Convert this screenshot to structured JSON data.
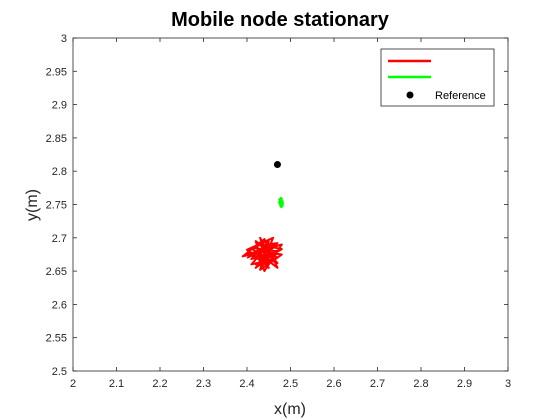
{
  "chart_data": {
    "type": "line",
    "title": "Mobile node stationary",
    "xlabel": "x(m)",
    "ylabel": "y(m)",
    "xlim": [
      2,
      3
    ],
    "ylim": [
      2.5,
      3
    ],
    "x_ticks": [
      "2",
      "2.1",
      "2.2",
      "2.3",
      "2.4",
      "2.5",
      "2.6",
      "2.7",
      "2.8",
      "2.9",
      "3"
    ],
    "y_ticks": [
      "2.5",
      "2.55",
      "2.6",
      "2.65",
      "2.7",
      "2.75",
      "2.8",
      "2.85",
      "2.9",
      "2.95",
      "3"
    ],
    "grid": false,
    "legend_position": "top-right",
    "series": [
      {
        "label": "",
        "color": "#ff0000",
        "style": "line",
        "center": [
          2.44,
          2.675
        ],
        "spread": [
          0.035,
          0.018
        ],
        "points": [
          [
            2.4,
            2.67
          ],
          [
            2.46,
            2.69
          ],
          [
            2.42,
            2.655
          ],
          [
            2.47,
            2.68
          ],
          [
            2.41,
            2.685
          ],
          [
            2.45,
            2.66
          ],
          [
            2.43,
            2.7
          ],
          [
            2.46,
            2.665
          ],
          [
            2.4,
            2.675
          ],
          [
            2.48,
            2.69
          ],
          [
            2.44,
            2.65
          ],
          [
            2.42,
            2.695
          ],
          [
            2.47,
            2.67
          ],
          [
            2.41,
            2.66
          ],
          [
            2.45,
            2.69
          ],
          [
            2.43,
            2.665
          ],
          [
            2.46,
            2.685
          ],
          [
            2.39,
            2.672
          ],
          [
            2.44,
            2.698
          ],
          [
            2.47,
            2.655
          ],
          [
            2.42,
            2.68
          ],
          [
            2.48,
            2.675
          ],
          [
            2.43,
            2.652
          ],
          [
            2.45,
            2.695
          ],
          [
            2.41,
            2.668
          ],
          [
            2.46,
            2.678
          ],
          [
            2.44,
            2.662
          ],
          [
            2.42,
            2.688
          ],
          [
            2.47,
            2.692
          ],
          [
            2.43,
            2.67
          ],
          [
            2.45,
            2.655
          ],
          [
            2.4,
            2.682
          ],
          [
            2.46,
            2.7
          ],
          [
            2.44,
            2.668
          ],
          [
            2.42,
            2.66
          ],
          [
            2.48,
            2.683
          ],
          [
            2.43,
            2.69
          ],
          [
            2.45,
            2.672
          ],
          [
            2.41,
            2.678
          ],
          [
            2.47,
            2.662
          ],
          [
            2.44,
            2.685
          ],
          [
            2.42,
            2.674
          ]
        ]
      },
      {
        "label": "",
        "color": "#00ff00",
        "style": "line",
        "points": [
          [
            2.473,
            2.752
          ],
          [
            2.478,
            2.76
          ],
          [
            2.482,
            2.748
          ],
          [
            2.476,
            2.756
          ],
          [
            2.481,
            2.754
          ],
          [
            2.474,
            2.758
          ],
          [
            2.479,
            2.746
          ],
          [
            2.483,
            2.752
          ],
          [
            2.475,
            2.75
          ],
          [
            2.48,
            2.759
          ],
          [
            2.477,
            2.747
          ],
          [
            2.482,
            2.755
          ],
          [
            2.476,
            2.753
          ],
          [
            2.479,
            2.757
          ],
          [
            2.481,
            2.749
          ]
        ]
      },
      {
        "label": "Reference",
        "color": "#000000",
        "style": "marker",
        "points": [
          [
            2.47,
            2.81
          ]
        ]
      }
    ]
  }
}
